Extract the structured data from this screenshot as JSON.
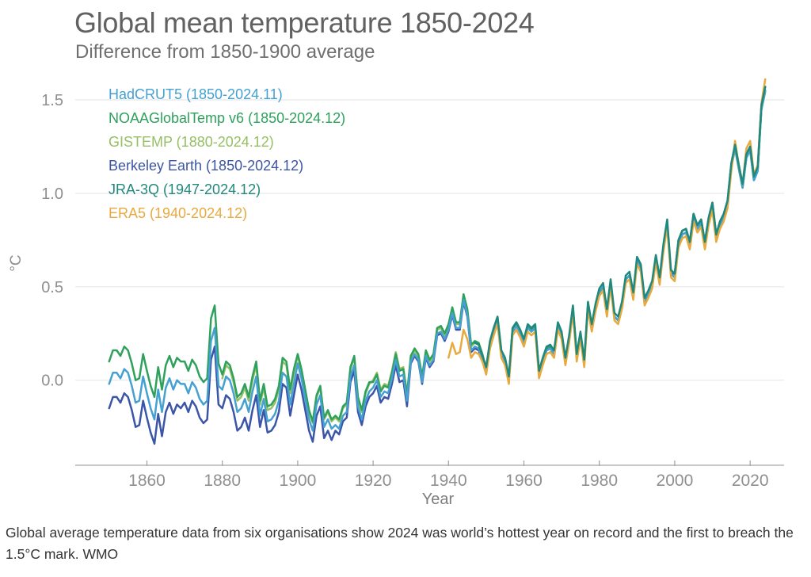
{
  "header": {
    "title": "Global mean temperature 1850-2024",
    "subtitle": "Difference from 1850-1900 average"
  },
  "caption": "Global average temperature data from six organisations show 2024 was world’s hottest year on record and the first to breach the 1.5°C mark. WMO",
  "chart_data": {
    "type": "line",
    "title": "Global mean temperature 1850-2024",
    "subtitle": "Difference from 1850-1900 average",
    "xlabel": "Year",
    "ylabel": "°C",
    "xlim": [
      1841,
      2029
    ],
    "ylim": [
      -0.455,
      1.661
    ],
    "x_ticks": [
      1860,
      1880,
      1900,
      1920,
      1940,
      1960,
      1980,
      2000,
      2020
    ],
    "y_ticks": [
      0.0,
      0.5,
      1.0,
      1.5
    ],
    "grid": "horizontal",
    "legend_position": "top-left",
    "axis_color": "#a6a6a6",
    "grid_color": "#ececec",
    "tick_label_color": "#8f8f8f",
    "series": [
      {
        "name": "HadCRUT5 (1850-2024.11)",
        "color": "#45a1d1",
        "start": 1850,
        "values": [
          -0.02,
          0.04,
          0.04,
          0.01,
          0.06,
          0.04,
          -0.03,
          -0.12,
          -0.11,
          0.02,
          -0.07,
          -0.15,
          -0.21,
          -0.05,
          -0.17,
          -0.04,
          0.01,
          -0.05,
          0.0,
          -0.02,
          -0.02,
          -0.07,
          -0.01,
          -0.04,
          -0.1,
          -0.13,
          -0.11,
          0.21,
          0.28,
          -0.03,
          -0.05,
          0.02,
          0.0,
          -0.07,
          -0.17,
          -0.15,
          -0.1,
          -0.17,
          -0.06,
          0.02,
          -0.19,
          -0.1,
          -0.22,
          -0.21,
          -0.18,
          -0.11,
          0.04,
          0.02,
          -0.13,
          -0.02,
          0.09,
          0.01,
          -0.1,
          -0.21,
          -0.27,
          -0.13,
          -0.08,
          -0.25,
          -0.21,
          -0.26,
          -0.24,
          -0.26,
          -0.19,
          -0.17,
          0.02,
          0.08,
          -0.14,
          -0.21,
          -0.11,
          -0.06,
          -0.04,
          0.0,
          -0.09,
          -0.06,
          -0.07,
          0.01,
          0.11,
          0.02,
          0.03,
          -0.11,
          0.1,
          0.14,
          0.11,
          -0.01,
          0.13,
          0.08,
          0.11,
          0.25,
          0.26,
          0.22,
          0.27,
          0.36,
          0.28,
          0.28,
          0.43,
          0.35,
          0.16,
          0.18,
          0.17,
          0.11,
          0.05,
          0.19,
          0.26,
          0.32,
          0.14,
          0.1,
          0.0,
          0.26,
          0.29,
          0.25,
          0.2,
          0.28,
          0.26,
          0.28,
          0.03,
          0.1,
          0.16,
          0.17,
          0.14,
          0.29,
          0.24,
          0.1,
          0.22,
          0.38,
          0.12,
          0.24,
          0.09,
          0.4,
          0.28,
          0.39,
          0.47,
          0.5,
          0.36,
          0.52,
          0.34,
          0.32,
          0.4,
          0.54,
          0.56,
          0.45,
          0.64,
          0.6,
          0.42,
          0.46,
          0.51,
          0.65,
          0.53,
          0.71,
          0.84,
          0.57,
          0.55,
          0.73,
          0.78,
          0.79,
          0.72,
          0.87,
          0.81,
          0.84,
          0.72,
          0.85,
          0.93,
          0.76,
          0.83,
          0.87,
          0.94,
          1.14,
          1.24,
          1.13,
          1.03,
          1.19,
          1.23,
          1.07,
          1.12,
          1.45,
          1.55
        ]
      },
      {
        "name": "NOAAGlobalTemp v6 (1850-2024.12)",
        "color": "#2ea15c",
        "start": 1850,
        "values": [
          0.1,
          0.16,
          0.16,
          0.13,
          0.18,
          0.16,
          0.09,
          0.0,
          0.01,
          0.14,
          0.05,
          -0.03,
          -0.09,
          0.07,
          -0.05,
          0.08,
          0.13,
          0.07,
          0.12,
          0.1,
          0.1,
          0.05,
          0.11,
          0.08,
          0.02,
          -0.01,
          0.01,
          0.33,
          0.4,
          0.09,
          0.03,
          0.1,
          0.08,
          0.01,
          -0.09,
          -0.07,
          -0.02,
          -0.09,
          0.02,
          0.1,
          -0.11,
          -0.02,
          -0.14,
          -0.13,
          -0.1,
          -0.03,
          0.12,
          0.1,
          -0.05,
          0.06,
          0.14,
          0.06,
          -0.05,
          -0.16,
          -0.22,
          -0.08,
          -0.03,
          -0.2,
          -0.16,
          -0.21,
          -0.19,
          -0.21,
          -0.14,
          -0.12,
          0.07,
          0.13,
          -0.09,
          -0.16,
          -0.06,
          -0.01,
          -0.01,
          0.03,
          -0.06,
          -0.03,
          -0.04,
          0.04,
          0.14,
          0.05,
          0.06,
          -0.08,
          0.13,
          0.17,
          0.14,
          0.02,
          0.16,
          0.11,
          0.14,
          0.28,
          0.29,
          0.25,
          0.3,
          0.39,
          0.31,
          0.31,
          0.46,
          0.38,
          0.19,
          0.21,
          0.2,
          0.14,
          0.06,
          0.2,
          0.27,
          0.33,
          0.15,
          0.11,
          0.01,
          0.27,
          0.3,
          0.26,
          0.21,
          0.29,
          0.27,
          0.29,
          0.04,
          0.11,
          0.17,
          0.18,
          0.15,
          0.3,
          0.25,
          0.11,
          0.23,
          0.39,
          0.13,
          0.25,
          0.1,
          0.41,
          0.29,
          0.4,
          0.47,
          0.5,
          0.36,
          0.52,
          0.34,
          0.32,
          0.4,
          0.54,
          0.56,
          0.45,
          0.64,
          0.6,
          0.42,
          0.46,
          0.51,
          0.65,
          0.53,
          0.71,
          0.84,
          0.57,
          0.55,
          0.73,
          0.78,
          0.79,
          0.72,
          0.87,
          0.81,
          0.84,
          0.72,
          0.85,
          0.93,
          0.76,
          0.83,
          0.87,
          0.94,
          1.14,
          1.24,
          1.13,
          1.03,
          1.19,
          1.23,
          1.07,
          1.12,
          1.45,
          1.55
        ]
      },
      {
        "name": "GISTEMP (1880-2024.12)",
        "color": "#97bf63",
        "start": 1880,
        "values": [
          0.01,
          0.08,
          0.06,
          -0.01,
          -0.11,
          -0.09,
          -0.04,
          -0.11,
          0.0,
          0.08,
          -0.13,
          -0.04,
          -0.16,
          -0.15,
          -0.12,
          -0.05,
          0.1,
          0.08,
          -0.07,
          0.04,
          0.13,
          0.05,
          -0.06,
          -0.17,
          -0.23,
          -0.09,
          -0.04,
          -0.21,
          -0.17,
          -0.22,
          -0.2,
          -0.22,
          -0.15,
          -0.13,
          0.06,
          0.12,
          -0.1,
          -0.17,
          -0.07,
          -0.02,
          0.0,
          0.04,
          -0.05,
          -0.02,
          -0.03,
          0.05,
          0.15,
          0.06,
          0.07,
          -0.07,
          0.12,
          0.16,
          0.13,
          0.01,
          0.15,
          0.1,
          0.13,
          0.27,
          0.28,
          0.24,
          0.29,
          0.38,
          0.3,
          0.3,
          0.45,
          0.37,
          0.18,
          0.2,
          0.19,
          0.13,
          0.07,
          0.21,
          0.28,
          0.34,
          0.16,
          0.12,
          0.02,
          0.28,
          0.31,
          0.27,
          0.2,
          0.28,
          0.26,
          0.28,
          0.03,
          0.1,
          0.16,
          0.17,
          0.14,
          0.29,
          0.24,
          0.1,
          0.22,
          0.38,
          0.12,
          0.24,
          0.09,
          0.4,
          0.28,
          0.39,
          0.47,
          0.5,
          0.36,
          0.52,
          0.34,
          0.32,
          0.4,
          0.54,
          0.56,
          0.45,
          0.64,
          0.6,
          0.42,
          0.46,
          0.51,
          0.65,
          0.53,
          0.71,
          0.84,
          0.57,
          0.55,
          0.73,
          0.78,
          0.79,
          0.72,
          0.87,
          0.81,
          0.84,
          0.72,
          0.85,
          0.93,
          0.76,
          0.83,
          0.87,
          0.94,
          1.14,
          1.24,
          1.13,
          1.03,
          1.19,
          1.23,
          1.07,
          1.12,
          1.45,
          1.54
        ]
      },
      {
        "name": "Berkeley Earth (1850-2024.12)",
        "color": "#3b55a8",
        "start": 1850,
        "values": [
          -0.15,
          -0.09,
          -0.09,
          -0.12,
          -0.07,
          -0.09,
          -0.16,
          -0.25,
          -0.24,
          -0.11,
          -0.2,
          -0.28,
          -0.34,
          -0.18,
          -0.3,
          -0.17,
          -0.12,
          -0.18,
          -0.13,
          -0.15,
          -0.12,
          -0.17,
          -0.11,
          -0.14,
          -0.2,
          -0.23,
          -0.21,
          0.11,
          0.18,
          -0.13,
          -0.15,
          -0.08,
          -0.1,
          -0.17,
          -0.27,
          -0.25,
          -0.2,
          -0.27,
          -0.16,
          -0.08,
          -0.25,
          -0.16,
          -0.28,
          -0.27,
          -0.24,
          -0.17,
          -0.02,
          -0.04,
          -0.19,
          -0.08,
          0.03,
          -0.05,
          -0.16,
          -0.27,
          -0.33,
          -0.19,
          -0.14,
          -0.31,
          -0.27,
          -0.32,
          -0.27,
          -0.29,
          -0.22,
          -0.2,
          -0.01,
          0.05,
          -0.17,
          -0.24,
          -0.14,
          -0.09,
          -0.07,
          -0.03,
          -0.12,
          -0.09,
          -0.1,
          -0.02,
          0.08,
          -0.01,
          0.0,
          -0.14,
          0.09,
          0.13,
          0.1,
          -0.02,
          0.12,
          0.07,
          0.1,
          0.24,
          0.25,
          0.21,
          0.26,
          0.35,
          0.27,
          0.27,
          0.42,
          0.34,
          0.15,
          0.17,
          0.16,
          0.1,
          0.05,
          0.19,
          0.26,
          0.32,
          0.14,
          0.1,
          0.0,
          0.26,
          0.29,
          0.25,
          0.2,
          0.28,
          0.26,
          0.28,
          0.03,
          0.1,
          0.16,
          0.17,
          0.14,
          0.29,
          0.24,
          0.1,
          0.22,
          0.38,
          0.12,
          0.24,
          0.09,
          0.4,
          0.28,
          0.39,
          0.47,
          0.5,
          0.36,
          0.52,
          0.34,
          0.32,
          0.4,
          0.54,
          0.56,
          0.45,
          0.64,
          0.6,
          0.42,
          0.46,
          0.51,
          0.65,
          0.53,
          0.71,
          0.84,
          0.57,
          0.57,
          0.75,
          0.8,
          0.81,
          0.74,
          0.89,
          0.83,
          0.86,
          0.74,
          0.87,
          0.95,
          0.78,
          0.85,
          0.89,
          0.96,
          1.16,
          1.26,
          1.15,
          1.05,
          1.21,
          1.25,
          1.09,
          1.14,
          1.47,
          1.57
        ]
      },
      {
        "name": "JRA-3Q (1947-2024.12)",
        "color": "#20897d",
        "start": 1947,
        "values": [
          0.2,
          0.19,
          0.13,
          0.07,
          0.21,
          0.28,
          0.34,
          0.16,
          0.12,
          0.02,
          0.28,
          0.31,
          0.27,
          0.22,
          0.3,
          0.28,
          0.3,
          0.05,
          0.12,
          0.18,
          0.19,
          0.16,
          0.31,
          0.26,
          0.12,
          0.24,
          0.4,
          0.14,
          0.26,
          0.11,
          0.42,
          0.3,
          0.41,
          0.49,
          0.52,
          0.38,
          0.54,
          0.36,
          0.34,
          0.42,
          0.56,
          0.58,
          0.47,
          0.66,
          0.62,
          0.44,
          0.48,
          0.53,
          0.67,
          0.55,
          0.73,
          0.86,
          0.59,
          0.57,
          0.75,
          0.8,
          0.81,
          0.74,
          0.89,
          0.83,
          0.86,
          0.74,
          0.87,
          0.95,
          0.78,
          0.85,
          0.89,
          0.96,
          1.16,
          1.26,
          1.15,
          1.05,
          1.21,
          1.25,
          1.09,
          1.14,
          1.47,
          1.57
        ]
      },
      {
        "name": "ERA5 (1940-2024.12)",
        "color": "#e8a93f",
        "start": 1940,
        "values": [
          0.12,
          0.2,
          0.14,
          0.15,
          0.27,
          0.22,
          0.12,
          0.15,
          0.14,
          0.1,
          0.03,
          0.17,
          0.24,
          0.3,
          0.12,
          0.08,
          -0.02,
          0.24,
          0.27,
          0.23,
          0.18,
          0.26,
          0.24,
          0.26,
          0.01,
          0.08,
          0.14,
          0.15,
          0.12,
          0.27,
          0.22,
          0.08,
          0.2,
          0.36,
          0.1,
          0.22,
          0.07,
          0.38,
          0.26,
          0.37,
          0.45,
          0.48,
          0.34,
          0.5,
          0.32,
          0.3,
          0.38,
          0.52,
          0.54,
          0.43,
          0.62,
          0.58,
          0.4,
          0.44,
          0.49,
          0.63,
          0.51,
          0.69,
          0.82,
          0.55,
          0.53,
          0.71,
          0.76,
          0.77,
          0.7,
          0.85,
          0.79,
          0.82,
          0.7,
          0.83,
          0.91,
          0.74,
          0.81,
          0.85,
          0.92,
          1.12,
          1.28,
          1.15,
          1.05,
          1.24,
          1.28,
          1.1,
          1.15,
          1.48,
          1.61
        ]
      }
    ]
  }
}
